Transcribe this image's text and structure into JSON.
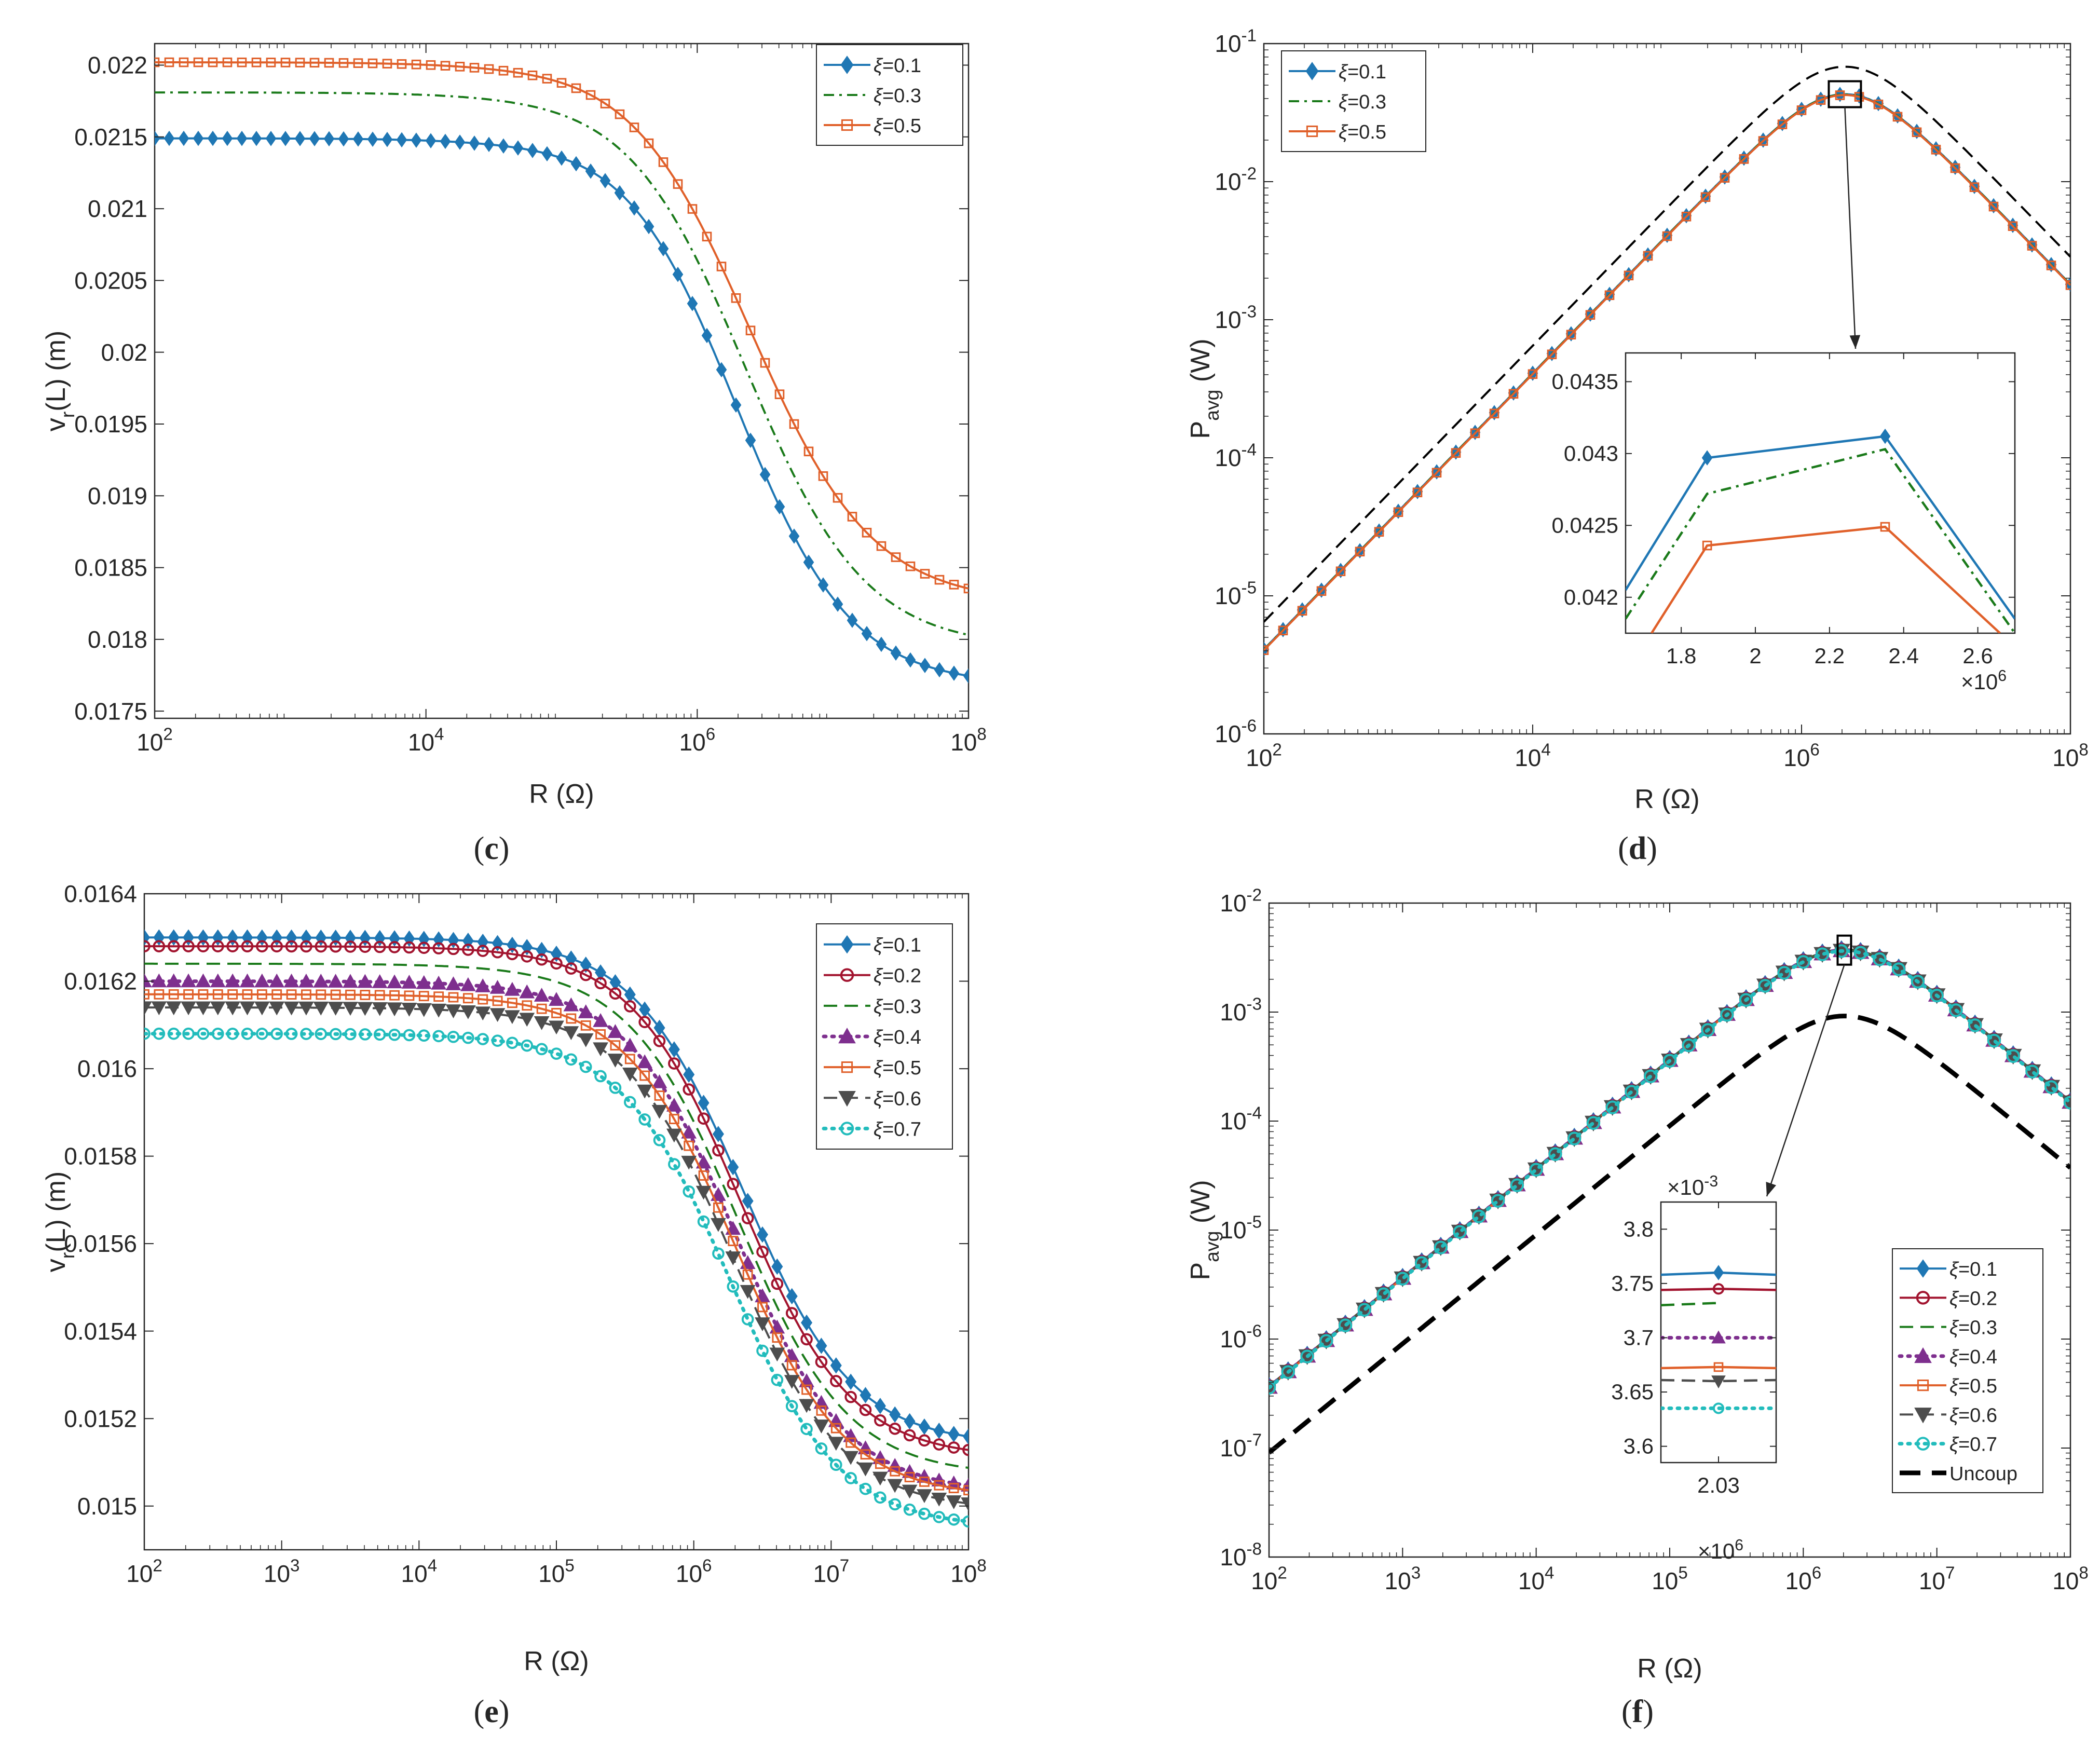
{
  "figure": {
    "colors": {
      "xi01": "#1f77b4",
      "xi02": "#a2142f",
      "xi03": "#1a7a1a",
      "xi04": "#7e2f8e",
      "xi05": "#e0602a",
      "xi06": "#4d4d4d",
      "xi07": "#22bcbc",
      "uncoupled": "#000000"
    }
  },
  "chart_data": [
    {
      "panel": "c",
      "label_open": "(",
      "label_letter": "c",
      "label_close": ")",
      "type": "line",
      "xscale": "log",
      "xlim": [
        100,
        100000000
      ],
      "ylim": [
        0.01745,
        0.02215
      ],
      "xlabel": "R (Ω)",
      "ylabel_main": "v",
      "ylabel_sub": "r",
      "ylabel_rest": "(L) (m)",
      "x_ticks": [
        {
          "value": 100,
          "base": "10",
          "exp": "2"
        },
        {
          "value": 10000,
          "base": "10",
          "exp": "4"
        },
        {
          "value": 1000000,
          "base": "10",
          "exp": "6"
        },
        {
          "value": 100000000,
          "base": "10",
          "exp": "8"
        }
      ],
      "y_ticks": [
        {
          "value": 0.0175,
          "label": "0.0175"
        },
        {
          "value": 0.018,
          "label": "0.018"
        },
        {
          "value": 0.0185,
          "label": "0.0185"
        },
        {
          "value": 0.019,
          "label": "0.019"
        },
        {
          "value": 0.0195,
          "label": "0.0195"
        },
        {
          "value": 0.02,
          "label": "0.02"
        },
        {
          "value": 0.0205,
          "label": "0.0205"
        },
        {
          "value": 0.021,
          "label": "0.021"
        },
        {
          "value": 0.0215,
          "label": "0.0215"
        },
        {
          "value": 0.022,
          "label": "0.022"
        }
      ],
      "legend": "top-right",
      "series": [
        {
          "name": "ξ=0.1",
          "prefix": "ξ",
          "suffix": "=0.1",
          "color_key": "xi01",
          "marker": "diamond",
          "dash": "solid",
          "low": 0.01768,
          "high": 0.02149,
          "peak": 0.021535,
          "center": 2000000,
          "width": 0.42
        },
        {
          "name": "ξ=0.3",
          "prefix": "ξ",
          "suffix": "=0.3",
          "color_key": "xi03",
          "marker": "none",
          "dash": "dashdot",
          "low": 0.01794,
          "high": 0.02181,
          "peak": 0.02183,
          "center": 2300000,
          "width": 0.44
        },
        {
          "name": "ξ=0.5",
          "prefix": "ξ",
          "suffix": "=0.5",
          "color_key": "xi05",
          "marker": "square",
          "dash": "solid",
          "low": 0.01825,
          "high": 0.02202,
          "peak": 0.02205,
          "center": 2500000,
          "width": 0.45
        }
      ]
    },
    {
      "panel": "d",
      "label_open": "(",
      "label_letter": "d",
      "label_close": ")",
      "type": "line",
      "xscale": "log",
      "yscale": "log",
      "xlim": [
        100,
        100000000
      ],
      "ylim": [
        1e-06,
        0.1
      ],
      "xlabel": "R (Ω)",
      "ylabel_main": "P",
      "ylabel_sub": "avg",
      "ylabel_rest": " (W)",
      "x_ticks": [
        {
          "value": 100,
          "base": "10",
          "exp": "2"
        },
        {
          "value": 10000,
          "base": "10",
          "exp": "4"
        },
        {
          "value": 1000000,
          "base": "10",
          "exp": "6"
        },
        {
          "value": 100000000,
          "base": "10",
          "exp": "8"
        }
      ],
      "y_ticks": [
        {
          "value": 1e-06,
          "base": "10",
          "exp": "-6"
        },
        {
          "value": 1e-05,
          "base": "10",
          "exp": "-5"
        },
        {
          "value": 0.0001,
          "base": "10",
          "exp": "-4"
        },
        {
          "value": 0.001,
          "base": "10",
          "exp": "-3"
        },
        {
          "value": 0.01,
          "base": "10",
          "exp": "-2"
        },
        {
          "value": 0.1,
          "base": "10",
          "exp": "-1"
        }
      ],
      "legend": "top-left",
      "peak_R": 2100000,
      "series": [
        {
          "name": "ξ=0.1",
          "prefix": "ξ",
          "suffix": "=0.1",
          "color_key": "xi01",
          "marker": "diamond",
          "dash": "solid",
          "peak": 0.043
        },
        {
          "name": "ξ=0.3",
          "prefix": "ξ",
          "suffix": "=0.3",
          "color_key": "xi03",
          "marker": "none",
          "dash": "dashdot",
          "peak": 0.0428
        },
        {
          "name": "ξ=0.5",
          "prefix": "ξ",
          "suffix": "=0.5",
          "color_key": "xi05",
          "marker": "square",
          "dash": "solid",
          "peak": 0.0424
        },
        {
          "name": "uncoupled",
          "color_key": "uncoupled",
          "marker": "none",
          "dash": "dashed",
          "peak": 0.068,
          "legend": false
        }
      ],
      "inset": {
        "xlim": [
          1650000,
          2700000
        ],
        "ylim": [
          0.04175,
          0.0437
        ],
        "x_ticks": [
          {
            "value": 1800000,
            "label": "1.8"
          },
          {
            "value": 2000000,
            "label": "2"
          },
          {
            "value": 2200000,
            "label": "2.2"
          },
          {
            "value": 2400000,
            "label": "2.4"
          },
          {
            "value": 2600000,
            "label": "2.6"
          }
        ],
        "y_ticks": [
          {
            "value": 0.042,
            "label": "0.042"
          },
          {
            "value": 0.0425,
            "label": "0.0425"
          },
          {
            "value": 0.043,
            "label": "0.043"
          },
          {
            "value": 0.0435,
            "label": "0.0435"
          }
        ],
        "multiplier_prefix": "×10",
        "multiplier_exp": "6",
        "series": [
          {
            "color_key": "xi01",
            "dash": "solid",
            "marker": "diamond",
            "x": [
              1650000,
              1870000,
              2350000,
              2700000
            ],
            "y": [
              0.04205,
              0.04297,
              0.04312,
              0.04185
            ]
          },
          {
            "color_key": "xi03",
            "dash": "dashdot",
            "marker": "none",
            "x": [
              1650000,
              1870000,
              2350000,
              2700000
            ],
            "y": [
              0.04185,
              0.04272,
              0.04303,
              0.04175
            ]
          },
          {
            "color_key": "xi05",
            "dash": "solid",
            "marker": "square",
            "x": [
              1720000,
              1870000,
              2350000,
              2660000
            ],
            "y": [
              0.04175,
              0.04236,
              0.04249,
              0.04175
            ]
          }
        ]
      }
    },
    {
      "panel": "e",
      "label_open": "(",
      "label_letter": "e",
      "label_close": ")",
      "type": "line",
      "xscale": "log",
      "xlim": [
        100,
        100000000
      ],
      "ylim": [
        0.0149,
        0.0164
      ],
      "xlabel": "R (Ω)",
      "ylabel_main": "v",
      "ylabel_sub": "r",
      "ylabel_rest": "(L) (m)",
      "x_ticks": [
        {
          "value": 100,
          "base": "10",
          "exp": "2"
        },
        {
          "value": 1000,
          "base": "10",
          "exp": "3"
        },
        {
          "value": 10000,
          "base": "10",
          "exp": "4"
        },
        {
          "value": 100000,
          "base": "10",
          "exp": "5"
        },
        {
          "value": 1000000,
          "base": "10",
          "exp": "6"
        },
        {
          "value": 10000000,
          "base": "10",
          "exp": "7"
        },
        {
          "value": 100000000,
          "base": "10",
          "exp": "8"
        }
      ],
      "y_ticks": [
        {
          "value": 0.015,
          "label": "0.015"
        },
        {
          "value": 0.0152,
          "label": "0.0152"
        },
        {
          "value": 0.0154,
          "label": "0.0154"
        },
        {
          "value": 0.0156,
          "label": "0.0156"
        },
        {
          "value": 0.0158,
          "label": "0.0158"
        },
        {
          "value": 0.016,
          "label": "0.016"
        },
        {
          "value": 0.0162,
          "label": "0.0162"
        },
        {
          "value": 0.0164,
          "label": "0.0164"
        }
      ],
      "legend": "top-right",
      "series": [
        {
          "name": "ξ=0.1",
          "prefix": "ξ",
          "suffix": "=0.1",
          "color_key": "xi01",
          "marker": "diamond",
          "dash": "solid",
          "low": 0.01514,
          "high": 0.0163,
          "center": 2300000,
          "width": 0.4
        },
        {
          "name": "ξ=0.2",
          "prefix": "ξ",
          "suffix": "=0.2",
          "color_key": "xi02",
          "marker": "circle",
          "dash": "solid",
          "low": 0.01511,
          "high": 0.01628,
          "center": 2200000,
          "width": 0.4
        },
        {
          "name": "ξ=0.3",
          "prefix": "ξ",
          "suffix": "=0.3",
          "color_key": "xi03",
          "marker": "none",
          "dash": "dashed",
          "low": 0.01507,
          "high": 0.01624,
          "center": 2100000,
          "width": 0.4
        },
        {
          "name": "ξ=0.4",
          "prefix": "ξ",
          "suffix": "=0.4",
          "color_key": "xi04",
          "marker": "triangle",
          "dash": "dotted",
          "low": 0.01503,
          "high": 0.0162,
          "center": 2050000,
          "width": 0.4
        },
        {
          "name": "ξ=0.5",
          "prefix": "ξ",
          "suffix": "=0.5",
          "color_key": "xi05",
          "marker": "square",
          "dash": "solid",
          "low": 0.01502,
          "high": 0.01617,
          "center": 2000000,
          "width": 0.4
        },
        {
          "name": "ξ=0.6",
          "prefix": "ξ",
          "suffix": "=0.6",
          "color_key": "xi06",
          "marker": "triangle-down",
          "dash": "dashed",
          "low": 0.01499,
          "high": 0.01614,
          "center": 1950000,
          "width": 0.4
        },
        {
          "name": "ξ=0.7",
          "prefix": "ξ",
          "suffix": "=0.7",
          "color_key": "xi07",
          "marker": "circle",
          "dash": "dotted",
          "low": 0.01495,
          "high": 0.01608,
          "center": 1850000,
          "width": 0.4
        }
      ]
    },
    {
      "panel": "f",
      "label_open": "(",
      "label_letter": "f",
      "label_close": ")",
      "type": "line",
      "xscale": "log",
      "yscale": "log",
      "xlim": [
        100,
        100000000
      ],
      "ylim": [
        1e-08,
        0.01
      ],
      "xlabel": "R (Ω)",
      "ylabel_main": "P",
      "ylabel_sub": "avg",
      "ylabel_rest": " (W)",
      "x_ticks": [
        {
          "value": 100,
          "base": "10",
          "exp": "2"
        },
        {
          "value": 1000,
          "base": "10",
          "exp": "3"
        },
        {
          "value": 10000,
          "base": "10",
          "exp": "4"
        },
        {
          "value": 100000,
          "base": "10",
          "exp": "5"
        },
        {
          "value": 1000000,
          "base": "10",
          "exp": "6"
        },
        {
          "value": 10000000,
          "base": "10",
          "exp": "7"
        },
        {
          "value": 100000000,
          "base": "10",
          "exp": "8"
        }
      ],
      "y_ticks": [
        {
          "value": 1e-08,
          "base": "10",
          "exp": "-8"
        },
        {
          "value": 1e-07,
          "base": "10",
          "exp": "-7"
        },
        {
          "value": 1e-06,
          "base": "10",
          "exp": "-6"
        },
        {
          "value": 1e-05,
          "base": "10",
          "exp": "-5"
        },
        {
          "value": 0.0001,
          "base": "10",
          "exp": "-4"
        },
        {
          "value": 0.001,
          "base": "10",
          "exp": "-3"
        },
        {
          "value": 0.01,
          "base": "10",
          "exp": "-2"
        }
      ],
      "legend": "bottom-right",
      "peak_R": 2030000,
      "series": [
        {
          "name": "ξ=0.1",
          "prefix": "ξ",
          "suffix": "=0.1",
          "color_key": "xi01",
          "marker": "diamond",
          "dash": "solid",
          "peak": 0.00376
        },
        {
          "name": "ξ=0.2",
          "prefix": "ξ",
          "suffix": "=0.2",
          "color_key": "xi02",
          "marker": "circle",
          "dash": "solid",
          "peak": 0.003745
        },
        {
          "name": "ξ=0.3",
          "prefix": "ξ",
          "suffix": "=0.3",
          "color_key": "xi03",
          "marker": "none",
          "dash": "dashed",
          "peak": 0.00373
        },
        {
          "name": "ξ=0.4",
          "prefix": "ξ",
          "suffix": "=0.4",
          "color_key": "xi04",
          "marker": "triangle",
          "dash": "dotted",
          "peak": 0.0037
        },
        {
          "name": "ξ=0.5",
          "prefix": "ξ",
          "suffix": "=0.5",
          "color_key": "xi05",
          "marker": "square",
          "dash": "solid",
          "peak": 0.003672
        },
        {
          "name": "ξ=0.6",
          "prefix": "ξ",
          "suffix": "=0.6",
          "color_key": "xi06",
          "marker": "triangle-down",
          "dash": "dashed",
          "peak": 0.00366
        },
        {
          "name": "ξ=0.7",
          "prefix": "ξ",
          "suffix": "=0.7",
          "color_key": "xi07",
          "marker": "circle",
          "dash": "dotted",
          "peak": 0.003635
        },
        {
          "name": "Uncoup",
          "prefix": "",
          "suffix": "Uncoup",
          "color_key": "uncoupled",
          "marker": "none",
          "dash": "dashed-bold",
          "peak": 0.00092
        }
      ],
      "inset": {
        "xlim": [
          2029000,
          2031000
        ],
        "ylim": [
          0.003585,
          0.003825
        ],
        "x_ticks": [
          {
            "value": 2030000,
            "label": "2.03"
          }
        ],
        "y_ticks": [
          {
            "value": 0.0036,
            "label": "3.6"
          },
          {
            "value": 0.00365,
            "label": "3.65"
          },
          {
            "value": 0.0037,
            "label": "3.7"
          },
          {
            "value": 0.00375,
            "label": "3.75"
          },
          {
            "value": 0.0038,
            "label": "3.8"
          }
        ],
        "multiplier_prefix": "×10",
        "multiplier_exp": "6",
        "y_multiplier_prefix": "×10",
        "y_multiplier_exp": "-3",
        "series": [
          {
            "color_key": "xi01",
            "dash": "solid",
            "marker": "diamond",
            "x": [
              2029000,
              2030000,
              2031000
            ],
            "y": [
              0.003758,
              0.00376,
              0.003758
            ]
          },
          {
            "color_key": "xi02",
            "dash": "solid",
            "marker": "circle",
            "x": [
              2029000,
              2030000,
              2031000
            ],
            "y": [
              0.003744,
              0.003745,
              0.003744
            ]
          },
          {
            "color_key": "xi03",
            "dash": "dashed",
            "marker": "none",
            "x": [
              2029000,
              2030000
            ],
            "y": [
              0.00373,
              0.003732
            ]
          },
          {
            "color_key": "xi04",
            "dash": "dotted",
            "marker": "triangle",
            "x": [
              2029000,
              2030000,
              2031000
            ],
            "y": [
              0.0037,
              0.0037,
              0.0037
            ]
          },
          {
            "color_key": "xi05",
            "dash": "solid",
            "marker": "square",
            "x": [
              2029000,
              2030000,
              2031000
            ],
            "y": [
              0.003672,
              0.003673,
              0.003672
            ]
          },
          {
            "color_key": "xi06",
            "dash": "dashed",
            "marker": "triangle-down",
            "x": [
              2029000,
              2030000,
              2031000
            ],
            "y": [
              0.003661,
              0.00366,
              0.003661
            ]
          },
          {
            "color_key": "xi07",
            "dash": "dotted",
            "marker": "circle",
            "x": [
              2029000,
              2030000,
              2031000
            ],
            "y": [
              0.003635,
              0.003635,
              0.003635
            ]
          }
        ]
      }
    }
  ]
}
